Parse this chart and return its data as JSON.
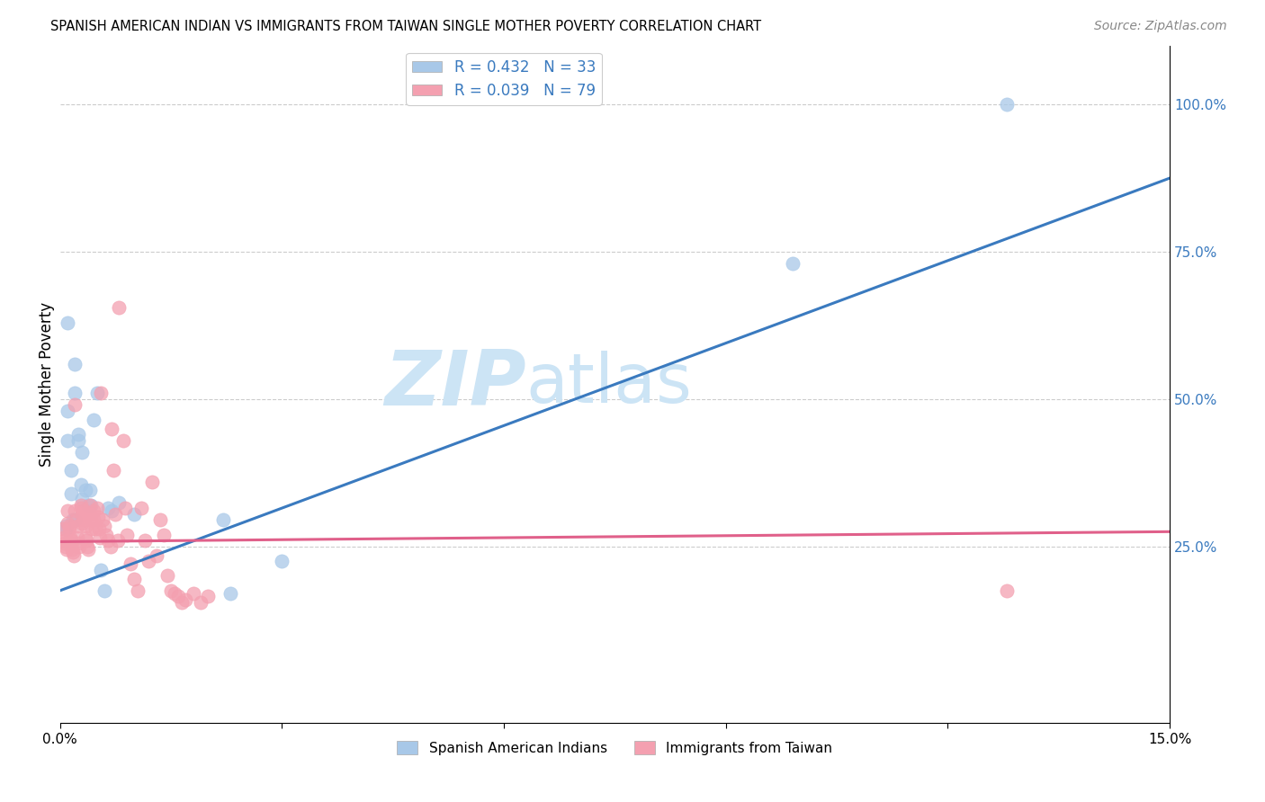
{
  "title": "SPANISH AMERICAN INDIAN VS IMMIGRANTS FROM TAIWAN SINGLE MOTHER POVERTY CORRELATION CHART",
  "source": "Source: ZipAtlas.com",
  "ylabel": "Single Mother Poverty",
  "ylabel_right_ticks": [
    "100.0%",
    "75.0%",
    "50.0%",
    "25.0%"
  ],
  "ylabel_right_vals": [
    1.0,
    0.75,
    0.5,
    0.25
  ],
  "legend1_label": "R = 0.432   N = 33",
  "legend2_label": "R = 0.039   N = 79",
  "legend1_dot_color": "#a8c8e8",
  "legend2_dot_color": "#f4a0b0",
  "line1_color": "#3a7abf",
  "line2_color": "#e0608a",
  "watermark_zip": "ZIP",
  "watermark_atlas": "atlas",
  "watermark_color": "#cce4f5",
  "background_color": "#ffffff",
  "xlim": [
    0.0,
    0.15
  ],
  "ylim": [
    -0.05,
    1.1
  ],
  "blue_x": [
    0.0008,
    0.0008,
    0.001,
    0.001,
    0.001,
    0.0015,
    0.0015,
    0.0018,
    0.002,
    0.002,
    0.002,
    0.0025,
    0.0025,
    0.0028,
    0.003,
    0.003,
    0.0035,
    0.0038,
    0.004,
    0.0042,
    0.0045,
    0.005,
    0.0055,
    0.006,
    0.0065,
    0.007,
    0.008,
    0.01,
    0.022,
    0.023,
    0.03,
    0.099,
    0.128
  ],
  "blue_y": [
    0.285,
    0.28,
    0.63,
    0.48,
    0.43,
    0.38,
    0.34,
    0.295,
    0.56,
    0.51,
    0.295,
    0.44,
    0.43,
    0.355,
    0.41,
    0.33,
    0.345,
    0.32,
    0.345,
    0.32,
    0.465,
    0.51,
    0.21,
    0.175,
    0.315,
    0.31,
    0.325,
    0.305,
    0.295,
    0.17,
    0.225,
    0.73,
    1.0
  ],
  "pink_x": [
    0.0003,
    0.0005,
    0.0006,
    0.0007,
    0.0008,
    0.0009,
    0.001,
    0.001,
    0.0012,
    0.0013,
    0.0014,
    0.0015,
    0.0015,
    0.0016,
    0.0018,
    0.0019,
    0.002,
    0.002,
    0.0022,
    0.0023,
    0.0024,
    0.0025,
    0.0026,
    0.0028,
    0.0028,
    0.003,
    0.003,
    0.0032,
    0.0033,
    0.0034,
    0.0035,
    0.0036,
    0.0037,
    0.0038,
    0.004,
    0.0041,
    0.0042,
    0.0043,
    0.0045,
    0.0046,
    0.0048,
    0.005,
    0.0051,
    0.0053,
    0.0054,
    0.0055,
    0.0058,
    0.006,
    0.0062,
    0.0065,
    0.0068,
    0.007,
    0.0072,
    0.0075,
    0.0078,
    0.008,
    0.0085,
    0.0088,
    0.009,
    0.0095,
    0.01,
    0.0105,
    0.011,
    0.0115,
    0.012,
    0.0125,
    0.013,
    0.0135,
    0.014,
    0.0145,
    0.015,
    0.0155,
    0.016,
    0.0165,
    0.017,
    0.018,
    0.019,
    0.02,
    0.128
  ],
  "pink_y": [
    0.28,
    0.265,
    0.26,
    0.255,
    0.25,
    0.245,
    0.31,
    0.29,
    0.285,
    0.28,
    0.265,
    0.26,
    0.255,
    0.245,
    0.24,
    0.235,
    0.49,
    0.31,
    0.295,
    0.285,
    0.265,
    0.255,
    0.25,
    0.32,
    0.315,
    0.305,
    0.29,
    0.31,
    0.295,
    0.285,
    0.265,
    0.26,
    0.25,
    0.245,
    0.32,
    0.305,
    0.295,
    0.28,
    0.31,
    0.295,
    0.28,
    0.315,
    0.3,
    0.28,
    0.265,
    0.51,
    0.295,
    0.285,
    0.27,
    0.26,
    0.25,
    0.45,
    0.38,
    0.305,
    0.26,
    0.655,
    0.43,
    0.315,
    0.27,
    0.22,
    0.195,
    0.175,
    0.315,
    0.26,
    0.225,
    0.36,
    0.235,
    0.295,
    0.27,
    0.2,
    0.175,
    0.17,
    0.165,
    0.155,
    0.16,
    0.17,
    0.155,
    0.165,
    0.175
  ],
  "blue_line_x": [
    0.0,
    0.15
  ],
  "blue_line_y": [
    0.175,
    0.875
  ],
  "pink_line_x": [
    0.0,
    0.15
  ],
  "pink_line_y": [
    0.258,
    0.275
  ],
  "bottom_legend1": "Spanish American Indians",
  "bottom_legend2": "Immigrants from Taiwan"
}
